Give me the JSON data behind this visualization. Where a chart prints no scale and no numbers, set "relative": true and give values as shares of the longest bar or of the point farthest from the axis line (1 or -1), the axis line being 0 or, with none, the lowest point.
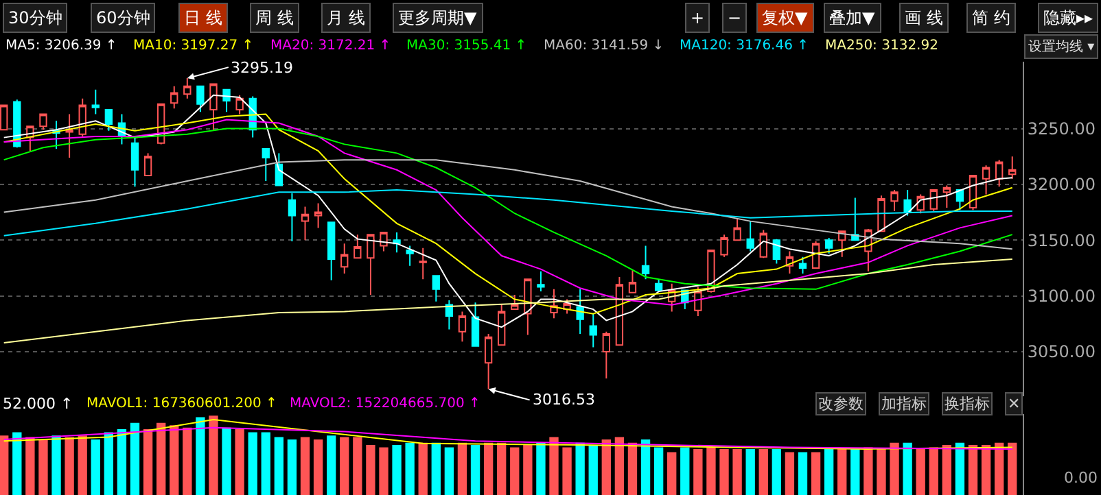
{
  "chart_data": [
    {
      "type": "other",
      "annotations": [
        "30分钟",
        "60分钟",
        "日 线",
        "周 线",
        "月 线",
        "更多周期▼",
        "+",
        "−",
        "复权▼",
        "叠加▼",
        "画 线",
        "简 约",
        "隐藏▸▸",
        "设置均线 ▾"
      ]
    },
    {
      "type": "candlestick",
      "categories": [
        null,
        null,
        null,
        null,
        null,
        null,
        null,
        null,
        null,
        null,
        null,
        null,
        null,
        null,
        null,
        null,
        null,
        null,
        null,
        null,
        null,
        null,
        null,
        null,
        null,
        null,
        null,
        null,
        null,
        null,
        null,
        null,
        null,
        null,
        null,
        null,
        null,
        null,
        null,
        null,
        null,
        null,
        null,
        null,
        null,
        null,
        null,
        null,
        null,
        null,
        null,
        null,
        null,
        null,
        null,
        null,
        null,
        null,
        null,
        null,
        null,
        null,
        null,
        null,
        null,
        null,
        null,
        null,
        null,
        null,
        null,
        null,
        null,
        null,
        null,
        null,
        null,
        null
      ],
      "ohlc": [
        [
          3249,
          3271,
          3249,
          3271
        ],
        [
          3274,
          3276,
          3233,
          3234
        ],
        [
          3242,
          3252,
          3230,
          3252
        ],
        [
          3252,
          3263,
          3249,
          3263
        ],
        [
          3248,
          3257,
          3232,
          3246
        ],
        [
          3247,
          3263,
          3224,
          3249
        ],
        [
          3245,
          3277,
          3243,
          3271
        ],
        [
          3271,
          3285,
          3263,
          3269
        ],
        [
          3267,
          3267,
          3248,
          3254
        ],
        [
          3255,
          3263,
          3236,
          3243
        ],
        [
          3237,
          3242,
          3198,
          3213
        ],
        [
          3208,
          3228,
          3208,
          3225
        ],
        [
          3237,
          3272,
          3236,
          3272
        ],
        [
          3273,
          3288,
          3268,
          3282
        ],
        [
          3281,
          3295.19,
          3277,
          3288
        ],
        [
          3288,
          3288,
          3265,
          3272
        ],
        [
          3267,
          3290,
          3249,
          3290
        ],
        [
          3285,
          3285,
          3265,
          3275
        ],
        [
          3267,
          3280,
          3263,
          3277
        ],
        [
          3277,
          3279,
          3242,
          3249
        ],
        [
          3232,
          3232,
          3203,
          3224
        ],
        [
          3218,
          3228,
          3199,
          3199
        ],
        [
          3186,
          3192,
          3149,
          3172
        ],
        [
          3167,
          3180,
          3150,
          3173
        ],
        [
          3172,
          3183,
          3161,
          3175
        ],
        [
          3166,
          3166,
          3114,
          3133
        ],
        [
          3126,
          3147,
          3120,
          3137
        ],
        [
          3134,
          3155,
          3134,
          3144
        ],
        [
          3134,
          3155,
          3101,
          3155
        ],
        [
          3145,
          3157,
          3140,
          3157
        ],
        [
          3150,
          3157,
          3139,
          3147
        ],
        [
          3141,
          3145,
          3127,
          3138
        ],
        [
          3130,
          3143,
          3115,
          3131
        ],
        [
          3118,
          3118,
          3095,
          3106
        ],
        [
          3092,
          3096,
          3070,
          3082
        ],
        [
          3068,
          3086,
          3059,
          3082
        ],
        [
          3081,
          3094,
          3055,
          3055
        ],
        [
          3040,
          3066,
          3016.53,
          3063
        ],
        [
          3056,
          3093,
          3056,
          3086
        ],
        [
          3088,
          3101,
          3088,
          3092
        ],
        [
          3084,
          3115,
          3065,
          3115
        ],
        [
          3110,
          3122,
          3104,
          3108
        ],
        [
          3085,
          3106,
          3080,
          3091
        ],
        [
          3088,
          3097,
          3084,
          3093
        ],
        [
          3090,
          3106,
          3066,
          3079
        ],
        [
          3073,
          3084,
          3054,
          3065
        ],
        [
          3050,
          3068,
          3026,
          3066
        ],
        [
          3056,
          3117,
          3056,
          3110
        ],
        [
          3103,
          3123,
          3103,
          3112
        ],
        [
          3127,
          3145,
          3115,
          3120
        ],
        [
          3111,
          3115,
          3104,
          3105
        ],
        [
          3095,
          3111,
          3086,
          3105
        ],
        [
          3105,
          3105,
          3088,
          3094
        ],
        [
          3087,
          3108,
          3082,
          3104
        ],
        [
          3104,
          3141,
          3103,
          3141
        ],
        [
          3137,
          3155,
          3135,
          3152
        ],
        [
          3150,
          3169,
          3150,
          3161
        ],
        [
          3151,
          3167,
          3140,
          3143
        ],
        [
          3135,
          3159,
          3134,
          3156
        ],
        [
          3150,
          3151,
          3129,
          3133
        ],
        [
          3127,
          3140,
          3120,
          3135
        ],
        [
          3129,
          3135,
          3120,
          3125
        ],
        [
          3125,
          3149,
          3125,
          3147
        ],
        [
          3150,
          3152,
          3138,
          3143
        ],
        [
          3150,
          3158,
          3135,
          3158
        ],
        [
          3155,
          3188,
          3150,
          3150
        ],
        [
          3140,
          3160,
          3122,
          3159
        ],
        [
          3158,
          3190,
          3158,
          3187
        ],
        [
          3185,
          3195,
          3176,
          3193
        ],
        [
          3186,
          3195,
          3172,
          3175
        ],
        [
          3177,
          3191,
          3174,
          3189
        ],
        [
          3178,
          3195,
          3176,
          3195
        ],
        [
          3193,
          3199,
          3179,
          3197
        ],
        [
          3195,
          3195,
          3177,
          3185
        ],
        [
          3179,
          3208,
          3177,
          3208
        ],
        [
          3205,
          3217,
          3191,
          3215
        ],
        [
          3205,
          3222,
          3198,
          3220
        ],
        [
          3209,
          3225,
          3205,
          3213
        ]
      ],
      "colors": [
        "#ff5555",
        "#00ffff",
        "#ff5555",
        "#ff5555",
        "#00ffff",
        "#ff5555",
        "#ff5555",
        "#00ffff",
        "#00ffff",
        "#00ffff",
        "#00ffff",
        "#ff5555",
        "#ff5555",
        "#ff5555",
        "#ff5555",
        "#00ffff",
        "#ff5555",
        "#00ffff",
        "#ff5555",
        "#00ffff",
        "#00ffff",
        "#00ffff",
        "#00ffff",
        "#ff5555",
        "#ff5555",
        "#00ffff",
        "#ff5555",
        "#ff5555",
        "#ff5555",
        "#ff5555",
        "#00ffff",
        "#00ffff",
        "#ff5555",
        "#00ffff",
        "#00ffff",
        "#ff5555",
        "#00ffff",
        "#ff5555",
        "#ff5555",
        "#ff5555",
        "#ff5555",
        "#00ffff",
        "#ff5555",
        "#ff5555",
        "#00ffff",
        "#00ffff",
        "#ff5555",
        "#ff5555",
        "#ff5555",
        "#00ffff",
        "#00ffff",
        "#ff5555",
        "#00ffff",
        "#ff5555",
        "#ff5555",
        "#ff5555",
        "#ff5555",
        "#00ffff",
        "#ff5555",
        "#00ffff",
        "#ff5555",
        "#00ffff",
        "#ff5555",
        "#00ffff",
        "#ff5555",
        "#00ffff",
        "#ff5555",
        "#ff5555",
        "#ff5555",
        "#00ffff",
        "#ff5555",
        "#ff5555",
        "#ff5555",
        "#00ffff",
        "#ff5555",
        "#ff5555",
        "#ff5555",
        "#ff5555"
      ],
      "series": [
        {
          "name": "MA5: 3206.39 ↑",
          "type": "line",
          "color": "#ffffff",
          "values": [
            3242,
            null,
            null,
            null,
            3249,
            null,
            null,
            3257,
            null,
            null,
            3242,
            null,
            null,
            3247,
            null,
            null,
            3280,
            null,
            3278,
            null,
            3255,
            3213,
            null,
            null,
            3190,
            null,
            3160,
            3151,
            null,
            null,
            3147,
            null,
            null,
            3132,
            3111,
            null,
            3080,
            null,
            3072,
            null,
            3086,
            3097,
            3097,
            null,
            null,
            3088,
            3078,
            null,
            3086,
            null,
            3104,
            null,
            null,
            null,
            3111,
            null,
            3128,
            null,
            3149,
            null,
            3142,
            null,
            3138,
            3136,
            null,
            3145,
            null,
            3159,
            null,
            3174,
            3186,
            null,
            3190,
            null,
            3199,
            null,
            3205,
            3206
          ]
        },
        {
          "name": "MA10: 3197.27 ↑",
          "type": "line",
          "color": "#ffff00",
          "values": [
            3238,
            null,
            null,
            null,
            null,
            null,
            null,
            3254,
            null,
            null,
            3248,
            null,
            null,
            null,
            3255,
            null,
            null,
            3261,
            null,
            null,
            3263,
            3249,
            null,
            null,
            3230,
            null,
            3205,
            null,
            null,
            null,
            3165,
            null,
            null,
            3147,
            null,
            null,
            3120,
            null,
            null,
            3097,
            null,
            null,
            3090,
            null,
            null,
            3084,
            null,
            3092,
            null,
            3101,
            null,
            3103,
            null,
            null,
            3107,
            null,
            3120,
            null,
            null,
            3124,
            null,
            null,
            3138,
            null,
            null,
            null,
            3145,
            null,
            null,
            3161,
            null,
            null,
            null,
            3178,
            3186,
            null,
            null,
            3197
          ]
        },
        {
          "name": "MA20: 3172.21 ↑",
          "type": "line",
          "color": "#ff00ff",
          "values": [
            3238,
            null,
            null,
            null,
            null,
            null,
            null,
            3243,
            null,
            null,
            3243,
            null,
            null,
            null,
            3249,
            null,
            null,
            3258,
            null,
            null,
            null,
            3255,
            null,
            null,
            3243,
            null,
            3228,
            null,
            null,
            null,
            3213,
            null,
            null,
            3195,
            null,
            3170,
            null,
            null,
            3136,
            null,
            null,
            3124,
            null,
            null,
            3107,
            null,
            null,
            3097,
            null,
            null,
            null,
            3092,
            null,
            null,
            null,
            3101,
            null,
            null,
            null,
            3111,
            null,
            null,
            3120,
            null,
            null,
            null,
            3130,
            null,
            null,
            3145,
            null,
            null,
            null,
            3161,
            null,
            null,
            null,
            3172
          ]
        },
        {
          "name": "MA30: 3155.41 ↑",
          "type": "line",
          "color": "#00ff00",
          "values": [
            3222,
            null,
            null,
            3233,
            null,
            null,
            null,
            3240,
            null,
            null,
            3242,
            null,
            null,
            null,
            3245,
            null,
            null,
            3250,
            null,
            null,
            null,
            3250,
            null,
            null,
            3243,
            null,
            3236,
            null,
            null,
            null,
            3228,
            null,
            null,
            3215,
            null,
            null,
            3197,
            null,
            null,
            3174,
            null,
            null,
            3157,
            null,
            null,
            null,
            3136,
            null,
            null,
            3117,
            null,
            null,
            3111,
            null,
            null,
            null,
            null,
            3107,
            null,
            null,
            null,
            null,
            3106,
            null,
            null,
            null,
            3120,
            null,
            null,
            3128,
            null,
            null,
            null,
            3140,
            null,
            null,
            null,
            3155
          ]
        },
        {
          "name": "MA60: 3141.59 ↓",
          "type": "line",
          "color": "#c0c0c0",
          "values": [
            3175,
            null,
            null,
            null,
            null,
            null,
            null,
            3186,
            null,
            null,
            null,
            null,
            null,
            null,
            3203,
            null,
            null,
            null,
            null,
            null,
            null,
            3220,
            null,
            null,
            null,
            null,
            3222,
            null,
            null,
            null,
            null,
            null,
            null,
            3222,
            null,
            null,
            null,
            null,
            null,
            3213,
            null,
            null,
            null,
            null,
            3203,
            null,
            null,
            null,
            null,
            null,
            null,
            3180,
            null,
            null,
            3174,
            null,
            null,
            3167,
            null,
            null,
            null,
            null,
            3159,
            null,
            null,
            null,
            null,
            3151,
            null,
            null,
            null,
            null,
            null,
            3147,
            null,
            null,
            null,
            3142
          ]
        },
        {
          "name": "MA120: 3176.46 ↑",
          "type": "line",
          "color": "#00e5ff",
          "values": [
            3154,
            null,
            null,
            null,
            null,
            null,
            null,
            3165,
            null,
            null,
            null,
            null,
            null,
            null,
            3178,
            null,
            null,
            null,
            null,
            null,
            null,
            3193,
            null,
            null,
            null,
            null,
            3193,
            null,
            null,
            null,
            3195,
            null,
            null,
            null,
            null,
            null,
            3191,
            null,
            null,
            null,
            null,
            null,
            3186,
            null,
            null,
            null,
            null,
            null,
            null,
            null,
            null,
            3176,
            null,
            null,
            null,
            null,
            null,
            3170,
            null,
            null,
            null,
            null,
            3172,
            null,
            null,
            null,
            null,
            3174,
            null,
            null,
            null,
            null,
            null,
            3176,
            null,
            null,
            null,
            3176
          ]
        },
        {
          "name": "MA250: 3132.92",
          "type": "line",
          "color": "#ffff99",
          "values": [
            3058,
            null,
            null,
            null,
            null,
            null,
            null,
            3068,
            null,
            null,
            null,
            null,
            null,
            null,
            3078,
            null,
            null,
            null,
            null,
            null,
            null,
            3085,
            null,
            null,
            null,
            null,
            3086,
            null,
            null,
            null,
            null,
            null,
            null,
            3090,
            null,
            null,
            null,
            null,
            null,
            3093,
            null,
            null,
            null,
            null,
            null,
            null,
            3097,
            null,
            null,
            null,
            3097,
            null,
            null,
            null,
            null,
            3109,
            null,
            null,
            null,
            null,
            null,
            3115,
            null,
            null,
            null,
            null,
            3120,
            null,
            null,
            null,
            null,
            3128,
            null,
            null,
            null,
            null,
            null,
            3133
          ]
        }
      ],
      "ylim": [
        3010,
        3310
      ],
      "yticks": [
        {
          "value": 3050,
          "label": "3050.00"
        },
        {
          "value": 3100,
          "label": "3100.00"
        },
        {
          "value": 3150,
          "label": "3150.00"
        },
        {
          "value": 3200,
          "label": "3200.00"
        },
        {
          "value": 3250,
          "label": "3250.00"
        }
      ],
      "grid": "y",
      "line_style": "solid",
      "legend": "top left",
      "annotations": [
        "3295.19",
        "3016.53"
      ]
    },
    {
      "type": "bar",
      "relative": true,
      "categories": [
        null,
        null,
        null,
        null,
        null,
        null,
        null,
        null,
        null,
        null,
        null,
        null,
        null,
        null,
        null,
        null,
        null,
        null,
        null,
        null,
        null,
        null,
        null,
        null,
        null,
        null,
        null,
        null,
        null,
        null,
        null,
        null,
        null,
        null,
        null,
        null,
        null,
        null,
        null,
        null,
        null,
        null,
        null,
        null,
        null,
        null,
        null,
        null,
        null,
        null,
        null,
        null,
        null,
        null,
        null,
        null,
        null,
        null,
        null,
        null,
        null,
        null,
        null,
        null,
        null,
        null,
        null,
        null,
        null,
        null,
        null,
        null,
        null,
        null,
        null,
        null,
        null,
        null
      ],
      "series": [
        {
          "type": "bar",
          "values": [
            0.75,
            0.79,
            0.73,
            0.7,
            0.75,
            0.73,
            0.75,
            0.7,
            0.79,
            0.83,
            0.91,
            0.83,
            0.91,
            0.88,
            0.85,
            0.98,
            1,
            0.85,
            0.83,
            0.79,
            0.79,
            0.73,
            0.7,
            0.73,
            0.7,
            0.75,
            0.73,
            0.73,
            0.63,
            0.6,
            0.63,
            0.66,
            0.66,
            0.66,
            0.6,
            0.66,
            0.63,
            0.66,
            0.66,
            0.6,
            0.63,
            0.66,
            0.73,
            0.6,
            0.66,
            0.63,
            0.7,
            0.73,
            0.66,
            0.7,
            0.6,
            0.54,
            0.6,
            0.58,
            0.6,
            0.58,
            0.58,
            0.58,
            0.58,
            0.58,
            0.54,
            0.54,
            0.54,
            0.58,
            0.58,
            0.58,
            0.6,
            0.58,
            0.66,
            0.66,
            0.58,
            0.6,
            0.63,
            0.66,
            0.63,
            0.63,
            0.66,
            0.66
          ],
          "colors": [
            "#ff5555",
            "#00ffff",
            "#ff5555",
            "#ff5555",
            "#00ffff",
            "#ff5555",
            "#ff5555",
            "#00ffff",
            "#00ffff",
            "#00ffff",
            "#00ffff",
            "#ff5555",
            "#ff5555",
            "#ff5555",
            "#ff5555",
            "#00ffff",
            "#ff5555",
            "#00ffff",
            "#ff5555",
            "#00ffff",
            "#00ffff",
            "#00ffff",
            "#00ffff",
            "#ff5555",
            "#ff5555",
            "#00ffff",
            "#ff5555",
            "#ff5555",
            "#ff5555",
            "#ff5555",
            "#00ffff",
            "#00ffff",
            "#ff5555",
            "#00ffff",
            "#00ffff",
            "#ff5555",
            "#00ffff",
            "#ff5555",
            "#ff5555",
            "#ff5555",
            "#ff5555",
            "#00ffff",
            "#ff5555",
            "#ff5555",
            "#00ffff",
            "#00ffff",
            "#ff5555",
            "#ff5555",
            "#ff5555",
            "#00ffff",
            "#00ffff",
            "#ff5555",
            "#00ffff",
            "#ff5555",
            "#ff5555",
            "#ff5555",
            "#ff5555",
            "#00ffff",
            "#ff5555",
            "#00ffff",
            "#ff5555",
            "#00ffff",
            "#ff5555",
            "#00ffff",
            "#ff5555",
            "#00ffff",
            "#ff5555",
            "#ff5555",
            "#ff5555",
            "#00ffff",
            "#ff5555",
            "#ff5555",
            "#ff5555",
            "#00ffff",
            "#ff5555",
            "#ff5555",
            "#ff5555",
            "#ff5555"
          ]
        },
        {
          "name": "MAVOL1: 167360601.200 ↑",
          "type": "line",
          "color": "#ffff00",
          "values": [
            0.68,
            null,
            null,
            null,
            null,
            null,
            null,
            null,
            0.73,
            null,
            null,
            null,
            null,
            null,
            null,
            null,
            0.95,
            null,
            null,
            null,
            null,
            null,
            null,
            null,
            0.8,
            null,
            null,
            null,
            null,
            null,
            null,
            null,
            0.65,
            null,
            null,
            null,
            null,
            null,
            null,
            null,
            null,
            null,
            null,
            null,
            0.63,
            null,
            null,
            null,
            null,
            null,
            null,
            null,
            null,
            null,
            null,
            null,
            0.6,
            null,
            null,
            null,
            null,
            null,
            null,
            null,
            null,
            null,
            0.58,
            null,
            null,
            null,
            null,
            null,
            null,
            null,
            null,
            null,
            null,
            0.6
          ]
        },
        {
          "name": "MAVOL2: 152204665.700 ↑",
          "type": "line",
          "color": "#ff00ff",
          "values": [
            0.7,
            null,
            null,
            null,
            null,
            null,
            null,
            null,
            null,
            null,
            null,
            null,
            null,
            null,
            null,
            null,
            0.85,
            null,
            null,
            null,
            null,
            null,
            null,
            null,
            null,
            null,
            0.8,
            null,
            null,
            null,
            null,
            null,
            null,
            null,
            null,
            null,
            0.68,
            null,
            null,
            null,
            null,
            null,
            null,
            null,
            null,
            null,
            null,
            null,
            0.64,
            null,
            null,
            null,
            null,
            null,
            null,
            null,
            null,
            null,
            null,
            null,
            0.6,
            null,
            null,
            null,
            null,
            null,
            null,
            null,
            null,
            null,
            null,
            null,
            null,
            null,
            null,
            null,
            null,
            0.58
          ]
        }
      ],
      "annotations": [
        "52.000 ↑",
        "改参数",
        "加指标",
        "换指标",
        "✕",
        "0.00"
      ]
    }
  ]
}
